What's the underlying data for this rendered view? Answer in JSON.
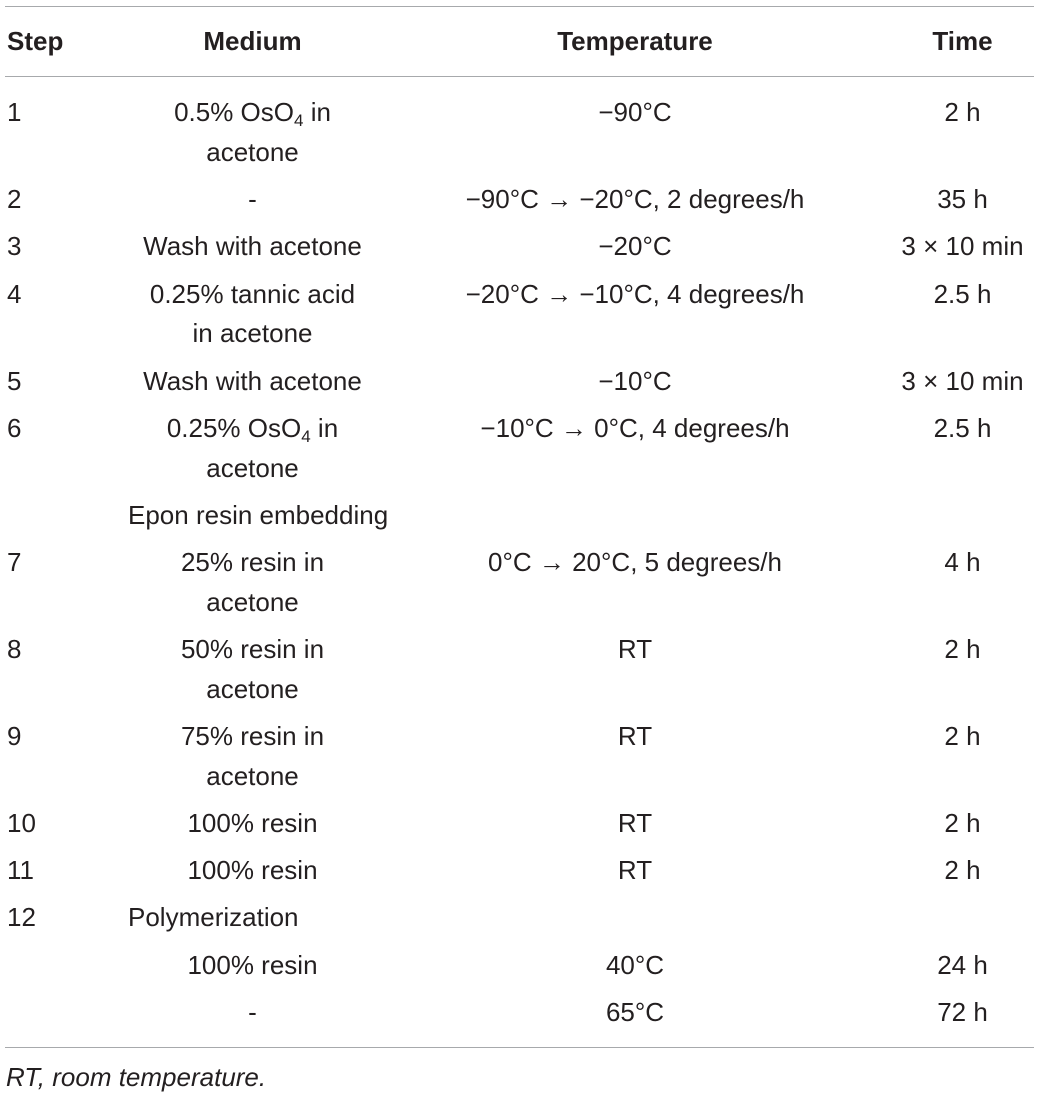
{
  "table": {
    "headers": {
      "step": "Step",
      "medium": "Medium",
      "temperature": "Temperature",
      "time": "Time"
    },
    "rows": [
      {
        "step": "1",
        "medium_line1": "0.5% OsO",
        "medium_sub": "4",
        "medium_line1_tail": " in",
        "medium_line2": "acetone",
        "temperature": "−90°C",
        "time": "2 h"
      },
      {
        "step": "2",
        "medium": "-",
        "temperature": "−90°C → −20°C, 2 degrees/h",
        "time": "35 h"
      },
      {
        "step": "3",
        "medium": "Wash with acetone",
        "temperature": "−20°C",
        "time": "3 × 10 min"
      },
      {
        "step": "4",
        "medium_line1": "0.25% tannic acid",
        "medium_line2": "in acetone",
        "temperature": "−20°C → −10°C, 4 degrees/h",
        "time": "2.5 h"
      },
      {
        "step": "5",
        "medium": "Wash with acetone",
        "temperature": "−10°C",
        "time": "3 × 10 min"
      },
      {
        "step": "6",
        "medium_line1": "0.25% OsO",
        "medium_sub": "4",
        "medium_line1_tail": " in",
        "medium_line2": "acetone",
        "temperature": "−10°C → 0°C, 4 degrees/h",
        "time": "2.5 h"
      },
      {
        "section": "Epon resin embedding"
      },
      {
        "step": "7",
        "medium_line1": "25% resin in",
        "medium_line2": "acetone",
        "temperature": "0°C → 20°C, 5 degrees/h",
        "time": "4 h"
      },
      {
        "step": "8",
        "medium_line1": "50% resin in",
        "medium_line2": "acetone",
        "temperature": "RT",
        "time": "2 h"
      },
      {
        "step": "9",
        "medium_line1": "75% resin in",
        "medium_line2": "acetone",
        "temperature": "RT",
        "time": "2 h"
      },
      {
        "step": "10",
        "medium": "100% resin",
        "temperature": "RT",
        "time": "2 h"
      },
      {
        "step": "11",
        "medium": "100% resin",
        "temperature": "RT",
        "time": "2 h"
      },
      {
        "step": "12",
        "section": "Polymerization"
      },
      {
        "step": "",
        "medium": "100% resin",
        "temperature": "40°C",
        "time": "24 h"
      },
      {
        "step": "",
        "medium": "-",
        "temperature": "65°C",
        "time": "72 h"
      }
    ]
  },
  "footnote": "RT, room temperature."
}
